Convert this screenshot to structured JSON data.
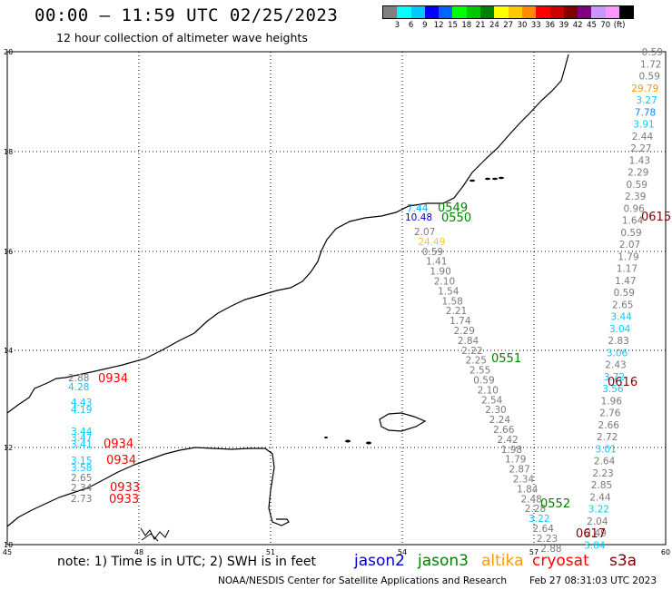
{
  "header": {
    "title": "00:00 – 11:59 UTC 02/25/2023",
    "subtitle": "12 hour collection of altimeter wave heights"
  },
  "color_scale": {
    "colors": [
      "#808080",
      "#00ffff",
      "#00c8ff",
      "#0000ff",
      "#0064ff",
      "#00ff00",
      "#00c800",
      "#008000",
      "#ffff00",
      "#ffc800",
      "#ff8c00",
      "#ff0000",
      "#c80000",
      "#800000",
      "#800080",
      "#c896ff",
      "#ff96ff",
      "#000000"
    ],
    "labels": [
      "3",
      "6",
      "9",
      "12",
      "15",
      "18",
      "21",
      "24",
      "27",
      "30",
      "33",
      "36",
      "39",
      "42",
      "45",
      "70",
      "(ft)"
    ]
  },
  "axes": {
    "x_ticks": [
      "45",
      "48",
      "51",
      "54",
      "57",
      "60"
    ],
    "y_ticks": [
      "20",
      "18",
      "16",
      "14",
      "12",
      "10"
    ]
  },
  "tracks": {
    "right_column": [
      "0.59",
      "1.72",
      "0.59",
      "29.79",
      "3.27",
      "7.78",
      "3.91",
      "2.44",
      "2.27",
      "1.43",
      "2.29",
      "0.59",
      "2.39",
      "0.96",
      "1.64",
      "0.59",
      "2.07",
      "1.79",
      "1.17",
      "1.47",
      "0.59",
      "2.65",
      "3.44",
      "3.04",
      "2.83",
      "3.06",
      "2.43",
      "3.72",
      "3.56",
      "1.96",
      "2.76",
      "2.66",
      "2.72",
      "3.01",
      "2.64",
      "2.23",
      "2.85",
      "2.44",
      "3.22",
      "2.04",
      "2.49",
      "3.04"
    ],
    "right_column_colors": [
      "gray",
      "gray",
      "gray",
      "orange",
      "cyan",
      "blue2",
      "cyan",
      "gray",
      "gray",
      "gray",
      "gray",
      "gray",
      "gray",
      "gray",
      "gray",
      "gray",
      "gray",
      "gray",
      "gray",
      "gray",
      "gray",
      "gray",
      "cyan",
      "cyan",
      "gray",
      "cyan",
      "gray",
      "cyan",
      "cyan",
      "gray",
      "gray",
      "gray",
      "gray",
      "cyan",
      "gray",
      "gray",
      "gray",
      "gray",
      "cyan",
      "gray",
      "gray",
      "cyan"
    ],
    "diagonal": [
      "2.07",
      "24.49",
      "0.59",
      "1.41",
      "1.90",
      "2.10",
      "1.54",
      "1.58",
      "2.21",
      "1.74",
      "2.29",
      "2.84",
      "2.22",
      "2.25",
      "2.55",
      "0.59",
      "2.10",
      "2.54",
      "2.30",
      "2.24",
      "2.66",
      "2.42",
      "1.98",
      "1.79",
      "2.87",
      "2.34",
      "1.84",
      "2.48",
      "2.28",
      "3.22",
      "2.64",
      "2.23",
      "2.88"
    ],
    "diagonal_colors": [
      "gray",
      "yellow",
      "gray",
      "gray",
      "gray",
      "gray",
      "gray",
      "gray",
      "gray",
      "gray",
      "gray",
      "gray",
      "gray",
      "gray",
      "gray",
      "gray",
      "gray",
      "gray",
      "gray",
      "gray",
      "gray",
      "gray",
      "gray",
      "gray",
      "gray",
      "gray",
      "gray",
      "gray",
      "gray",
      "cyan",
      "gray",
      "gray",
      "gray"
    ],
    "left_column": [
      "2.88",
      "4.28",
      "4.43",
      "4.19",
      "3.44",
      "3.47",
      "3.41",
      "3.15",
      "3.58",
      "2.65",
      "2.34",
      "2.73"
    ],
    "left_column_colors": [
      "gray",
      "cyan",
      "cyan",
      "cyan",
      "cyan",
      "cyan",
      "cyan",
      "cyan",
      "cyan",
      "gray",
      "gray",
      "gray"
    ],
    "top_pair": [
      "7.44",
      "10.48"
    ]
  },
  "time_labels": [
    {
      "text": "0549",
      "sat": "jason3"
    },
    {
      "text": "0550",
      "sat": "jason3"
    },
    {
      "text": "0615",
      "sat": "s3a"
    },
    {
      "text": "0551",
      "sat": "jason3"
    },
    {
      "text": "0616",
      "sat": "s3a"
    },
    {
      "text": "0552",
      "sat": "jason3"
    },
    {
      "text": "0617",
      "sat": "s3a"
    },
    {
      "text": "0934",
      "sat": "cryosat"
    },
    {
      "text": "0934",
      "sat": "cryosat"
    },
    {
      "text": "0934",
      "sat": "cryosat"
    },
    {
      "text": "0933",
      "sat": "cryosat"
    },
    {
      "text": "0933",
      "sat": "cryosat"
    }
  ],
  "footer": {
    "note": "note: 1) Time is in UTC; 2) SWH is in feet",
    "credit": "NOAA/NESDIS Center for Satellite Applications and Research",
    "generated": "Feb 27 08:31:03 UTC 2023"
  },
  "legend": [
    {
      "name": "jason2",
      "color": "#0000cc"
    },
    {
      "name": "jason3",
      "color": "#008000"
    },
    {
      "name": "altika",
      "color": "#ff9900"
    },
    {
      "name": "cryosat",
      "color": "#ff0000"
    },
    {
      "name": "s3a",
      "color": "#800000"
    }
  ],
  "value_colors": {
    "gray": "#7a7a7a",
    "cyan": "#00ccff",
    "blue2": "#0088ff",
    "orange": "#ff9900",
    "yellow": "#ffcc00",
    "blue": "#0000cc",
    "jason3": "#008000",
    "cryosat": "#ff0000",
    "s3a": "#800000"
  }
}
